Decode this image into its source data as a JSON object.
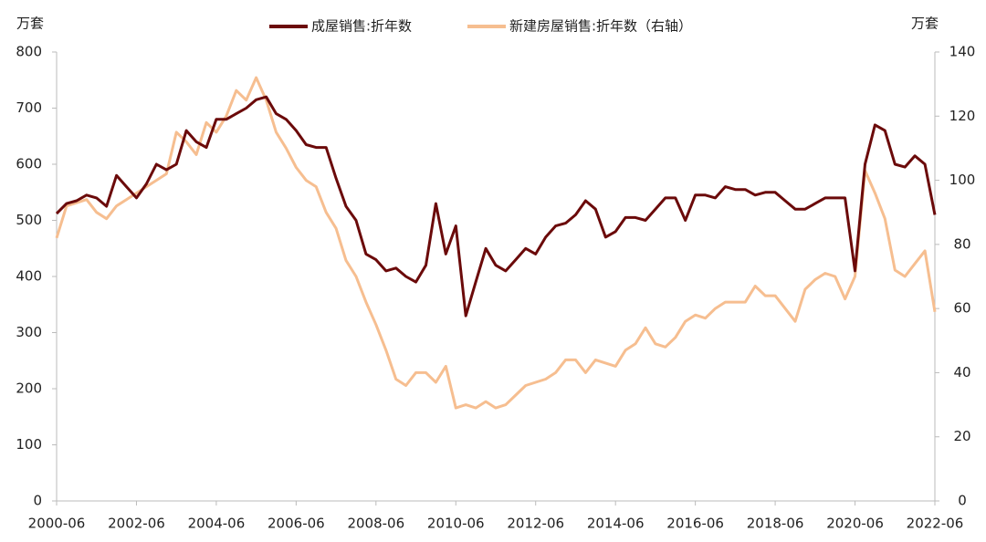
{
  "chart_data": {
    "type": "line",
    "y_unit": "万套",
    "y2_unit": "万套",
    "legend": "top",
    "x": [
      "2000-06",
      "2000-09",
      "2000-12",
      "2001-03",
      "2001-06",
      "2001-09",
      "2001-12",
      "2002-03",
      "2002-06",
      "2002-09",
      "2002-12",
      "2003-03",
      "2003-06",
      "2003-09",
      "2003-12",
      "2004-03",
      "2004-06",
      "2004-09",
      "2004-12",
      "2005-03",
      "2005-06",
      "2005-09",
      "2005-12",
      "2006-03",
      "2006-06",
      "2006-09",
      "2006-12",
      "2007-03",
      "2007-06",
      "2007-09",
      "2007-12",
      "2008-03",
      "2008-06",
      "2008-09",
      "2008-12",
      "2009-03",
      "2009-06",
      "2009-09",
      "2009-12",
      "2010-03",
      "2010-06",
      "2010-09",
      "2010-12",
      "2011-03",
      "2011-06",
      "2011-09",
      "2011-12",
      "2012-03",
      "2012-06",
      "2012-09",
      "2012-12",
      "2013-03",
      "2013-06",
      "2013-09",
      "2013-12",
      "2014-03",
      "2014-06",
      "2014-09",
      "2014-12",
      "2015-03",
      "2015-06",
      "2015-09",
      "2015-12",
      "2016-03",
      "2016-06",
      "2016-09",
      "2016-12",
      "2017-03",
      "2017-06",
      "2017-09",
      "2017-12",
      "2018-03",
      "2018-06",
      "2018-09",
      "2018-12",
      "2019-03",
      "2019-06",
      "2019-09",
      "2019-12",
      "2020-03",
      "2020-06",
      "2020-09",
      "2020-12",
      "2021-03",
      "2021-06",
      "2021-09",
      "2021-12",
      "2022-03",
      "2022-06"
    ],
    "series": [
      {
        "name": "成屋销售:折年数",
        "color": "#6b0a0a",
        "axis": "y",
        "values": [
          512,
          530,
          535,
          545,
          540,
          525,
          580,
          560,
          540,
          565,
          600,
          590,
          600,
          660,
          640,
          630,
          680,
          680,
          690,
          700,
          715,
          720,
          690,
          680,
          660,
          635,
          630,
          630,
          575,
          525,
          500,
          440,
          430,
          410,
          415,
          400,
          390,
          420,
          530,
          440,
          490,
          330,
          390,
          450,
          420,
          410,
          430,
          450,
          440,
          470,
          490,
          495,
          510,
          535,
          520,
          470,
          480,
          505,
          505,
          500,
          520,
          540,
          540,
          500,
          545,
          545,
          540,
          560,
          555,
          555,
          545,
          550,
          550,
          535,
          520,
          520,
          530,
          540,
          540,
          540,
          410,
          600,
          670,
          660,
          600,
          595,
          615,
          600,
          510
        ]
      },
      {
        "name": "新建房屋销售:折年数（右轴）",
        "color": "#f6be90",
        "axis": "y2",
        "values": [
          82,
          92,
          93,
          94,
          90,
          88,
          92,
          94,
          96,
          98,
          100,
          102,
          115,
          112,
          108,
          118,
          115,
          120,
          128,
          125,
          132,
          125,
          115,
          110,
          104,
          100,
          98,
          90,
          85,
          75,
          70,
          62,
          55,
          47,
          38,
          36,
          40,
          40,
          37,
          42,
          29,
          30,
          29,
          31,
          29,
          30,
          33,
          36,
          37,
          38,
          40,
          44,
          44,
          40,
          44,
          43,
          42,
          47,
          49,
          54,
          49,
          48,
          51,
          56,
          58,
          57,
          60,
          62,
          62,
          62,
          67,
          64,
          64,
          60,
          56,
          66,
          69,
          71,
          70,
          63,
          70,
          103,
          96,
          88,
          72,
          70,
          74,
          78,
          59
        ]
      }
    ],
    "ylim": [
      0,
      800
    ],
    "yticks": [
      0,
      100,
      200,
      300,
      400,
      500,
      600,
      700,
      800
    ],
    "y2lim": [
      0,
      140
    ],
    "y2ticks": [
      0,
      20,
      40,
      60,
      80,
      100,
      120,
      140
    ]
  }
}
